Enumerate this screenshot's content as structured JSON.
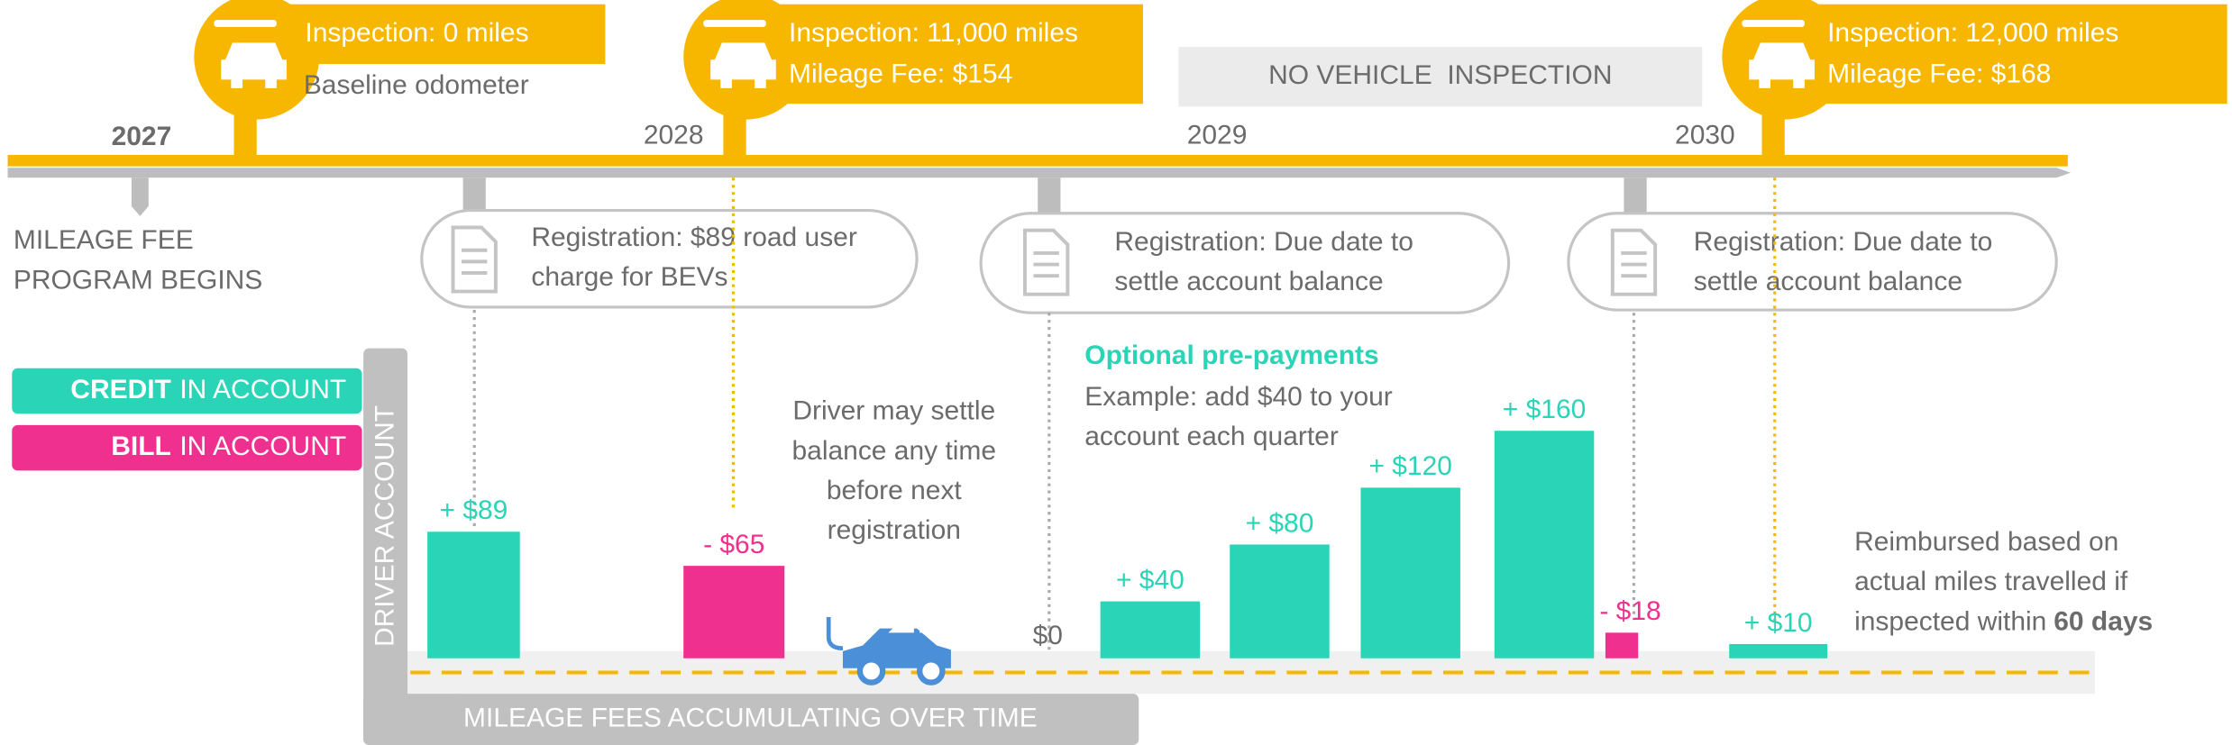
{
  "timeline": {
    "years": [
      "2027",
      "2028",
      "2029",
      "2030"
    ]
  },
  "inspections": [
    {
      "title": "Inspection: 0 miles",
      "detail": "Baseline odometer"
    },
    {
      "title": "Inspection: 11,000 miles",
      "detail": "Mileage Fee: $154"
    },
    {
      "title": "Inspection: 12,000 miles",
      "detail": "Mileage Fee: $168"
    }
  ],
  "no_inspection": "NO VEHICLE  INSPECTION",
  "program_start": [
    "MILEAGE FEE",
    "PROGRAM BEGINS"
  ],
  "registrations": [
    [
      "Registration: $89 road user",
      "charge for BEVs"
    ],
    [
      "Registration: Due date to",
      "settle account balance"
    ],
    [
      "Registration: Due date to",
      "settle account balance"
    ]
  ],
  "legend": {
    "credit": {
      "bold": "CREDIT",
      "rest": "IN ACCOUNT"
    },
    "bill": {
      "bold": "BILL",
      "rest": "IN ACCOUNT"
    }
  },
  "axis": {
    "y_label": "DRIVER ACCOUNT",
    "x_label": "MILEAGE FEES ACCUMULATING OVER TIME",
    "zero": "$0"
  },
  "notes": {
    "settle": [
      "Driver may settle",
      "balance any time",
      "before next",
      "registration"
    ],
    "prepay_title": "Optional pre-payments",
    "prepay": [
      "Example: add $40 to your",
      "account each quarter"
    ],
    "reimburse": [
      "Reimbursed based on",
      "actual miles travelled if",
      "inspected within",
      "60 days"
    ]
  },
  "bars": [
    {
      "value": 89,
      "label": "+ $89"
    },
    {
      "value": -65,
      "label": "- $65"
    },
    {
      "value": 40,
      "label": "+ $40"
    },
    {
      "value": 80,
      "label": "+ $80"
    },
    {
      "value": 120,
      "label": "+ $120"
    },
    {
      "value": 160,
      "label": "+ $160"
    },
    {
      "value": -18,
      "label": "- $18"
    },
    {
      "value": 10,
      "label": "+ $10"
    }
  ]
}
